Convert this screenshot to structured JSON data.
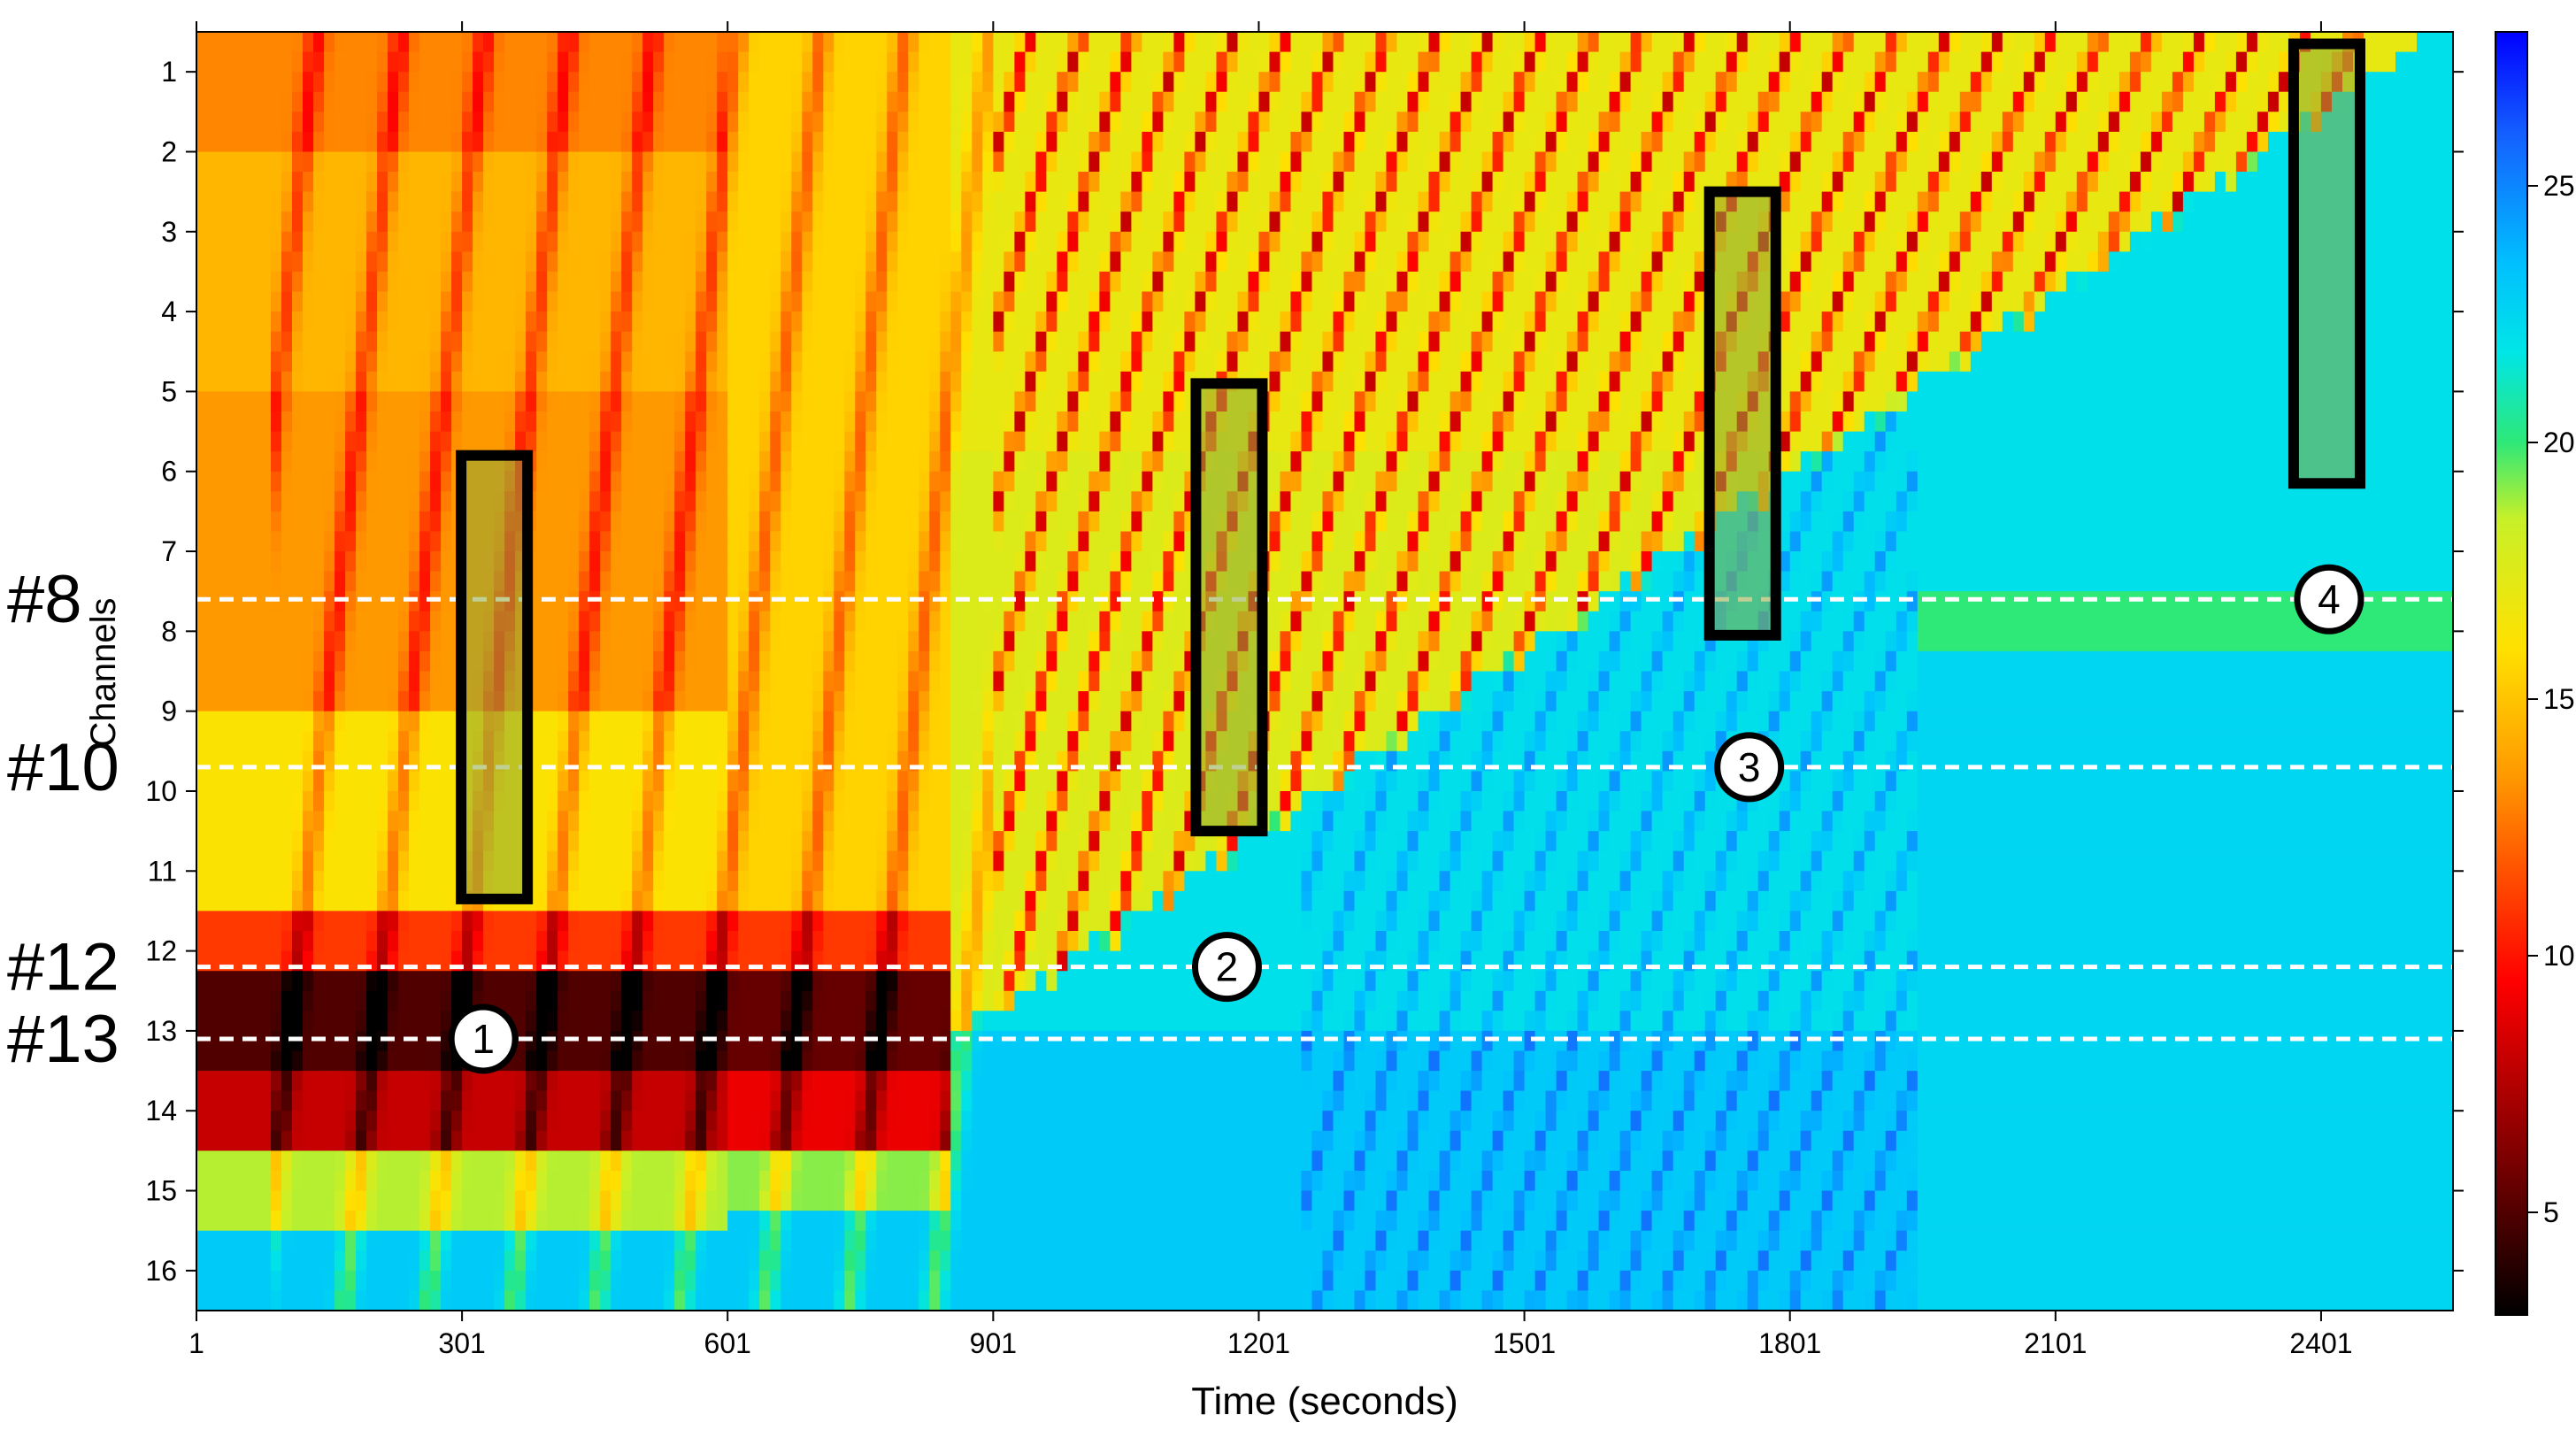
{
  "chart_data": {
    "type": "heatmap",
    "title": "",
    "xlabel": "Time (seconds)",
    "ylabel": "Channels",
    "x_ticks": [
      "1",
      "301",
      "601",
      "901",
      "1201",
      "1501",
      "1801",
      "2101",
      "2401"
    ],
    "x_tick_values": [
      1,
      301,
      601,
      901,
      1201,
      1501,
      1801,
      2101,
      2401
    ],
    "xlim": [
      1,
      2550
    ],
    "y_ticks": [
      "1",
      "2",
      "3",
      "4",
      "5",
      "6",
      "7",
      "8",
      "9",
      "10",
      "11",
      "12",
      "13",
      "14",
      "15",
      "16"
    ],
    "ylim": [
      0.5,
      16.5
    ],
    "colorbar": {
      "ticks": [
        "5",
        "10",
        "15",
        "20",
        "25"
      ],
      "tick_values": [
        5,
        10,
        15,
        20,
        25
      ],
      "range": [
        3,
        28
      ],
      "colormap": "jet-reversed-with-black-low"
    },
    "highlighted_channels": [
      {
        "label": "#8",
        "channel": 7.6
      },
      {
        "label": "#10",
        "channel": 9.7
      },
      {
        "label": "#12",
        "channel": 12.2
      },
      {
        "label": "#13",
        "channel": 13.1
      }
    ],
    "boxes": [
      {
        "x0": 300,
        "x1": 375,
        "y0": 5.8,
        "y1": 11.35
      },
      {
        "x0": 1130,
        "x1": 1205,
        "y0": 4.9,
        "y1": 10.5
      },
      {
        "x0": 1710,
        "x1": 1785,
        "y0": 2.5,
        "y1": 8.05
      },
      {
        "x0": 2370,
        "x1": 2445,
        "y0": 0.65,
        "y1": 6.15
      }
    ],
    "markers": [
      {
        "label": "1",
        "x": 325,
        "channel": 13.1
      },
      {
        "label": "2",
        "x": 1165,
        "channel": 12.2
      },
      {
        "label": "3",
        "x": 1755,
        "channel": 9.7
      },
      {
        "label": "4",
        "x": 2410,
        "channel": 7.6
      }
    ]
  }
}
